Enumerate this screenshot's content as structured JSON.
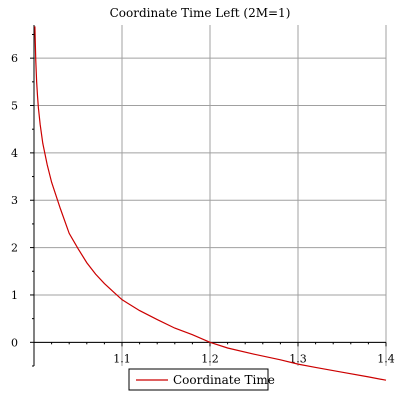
{
  "chart_data": {
    "type": "line",
    "title": "Coordinate Time Left (2M=1)",
    "xlabel": "",
    "ylabel": "",
    "xlim": [
      1.0,
      1.4
    ],
    "ylim": [
      -0.5,
      6.7
    ],
    "grid": true,
    "legend_position": "bottom-center",
    "x_ticks": [
      1.1,
      1.2,
      1.3,
      1.4
    ],
    "x_tick_labels": [
      "1.1",
      "1.2",
      "1.3",
      "1.4"
    ],
    "y_ticks": [
      0,
      1,
      2,
      3,
      4,
      5,
      6
    ],
    "y_tick_labels": [
      "0",
      "1",
      "2",
      "3",
      "4",
      "5",
      "6"
    ],
    "series": [
      {
        "name": "Coordinate Time",
        "color": "#cc0000",
        "x": [
          1.001,
          1.002,
          1.003,
          1.004,
          1.005,
          1.007,
          1.01,
          1.015,
          1.02,
          1.03,
          1.04,
          1.05,
          1.06,
          1.07,
          1.08,
          1.09,
          1.1,
          1.12,
          1.14,
          1.16,
          1.18,
          1.2,
          1.22,
          1.25,
          1.28,
          1.3,
          1.32,
          1.35,
          1.38,
          1.4
        ],
        "y": [
          6.67,
          5.96,
          5.5,
          5.2,
          4.95,
          4.6,
          4.2,
          3.75,
          3.38,
          2.82,
          2.3,
          1.98,
          1.68,
          1.44,
          1.24,
          1.07,
          0.9,
          0.67,
          0.48,
          0.3,
          0.16,
          0.0,
          -0.12,
          -0.25,
          -0.37,
          -0.46,
          -0.53,
          -0.63,
          -0.73,
          -0.8
        ]
      }
    ]
  }
}
